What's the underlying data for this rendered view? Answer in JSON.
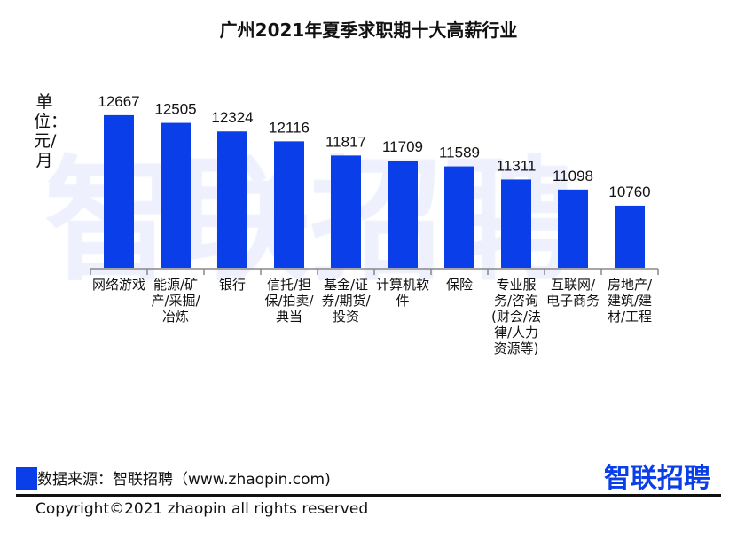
{
  "chart_data": {
    "type": "bar",
    "title": "广州2021年夏季求职期十大高薪行业",
    "ylabel": "单位：元/月",
    "categories": [
      "网络游戏",
      "能源/矿产/采掘/冶炼",
      "银行",
      "信托/担保/拍卖/典当",
      "基金/证券/期货/投资",
      "计算机软件",
      "保险",
      "专业服务/咨询(财会/法律/人力资源等)",
      "互联网/电子商务",
      "房地产/建筑/建材/工程"
    ],
    "values": [
      12667,
      12505,
      12324,
      12116,
      11817,
      11709,
      11589,
      11311,
      11098,
      10760
    ],
    "bar_color": "#0a3ee8",
    "grid": false,
    "legend": "none"
  },
  "watermark": "智联招聘",
  "footer": {
    "source": "数据来源：智联招聘（www.zhaopin.com)",
    "logo": "智联招聘",
    "copyright": "Copyright©2021 zhaopin all rights reserved"
  }
}
